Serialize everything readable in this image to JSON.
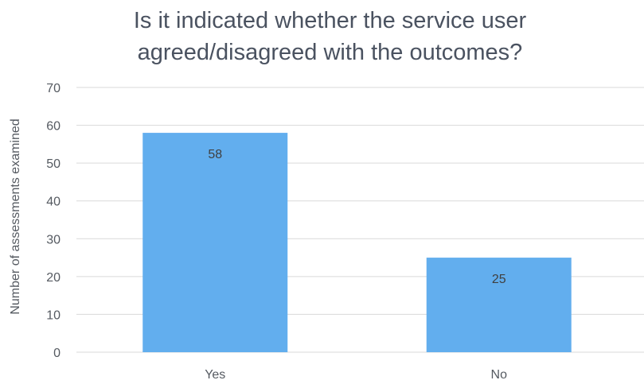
{
  "chart_data": {
    "type": "bar",
    "title_lines": [
      "Is it indicated whether the service user",
      "agreed/disagreed  with the outcomes?"
    ],
    "categories": [
      "Yes",
      "No"
    ],
    "values": [
      58,
      25
    ],
    "data_labels": [
      "58",
      "25"
    ],
    "xlabel": "",
    "ylabel": "Number of assessments examined",
    "ylim": [
      0,
      70
    ],
    "yticks": [
      0,
      10,
      20,
      30,
      40,
      50,
      60,
      70
    ],
    "ytick_labels": [
      "0",
      "10",
      "20",
      "30",
      "40",
      "50",
      "60",
      "70"
    ],
    "grid": true,
    "legend": "none",
    "colors": {
      "bar": "#62aeee",
      "grid": "#d9d9d9",
      "text": "#555a61"
    }
  }
}
